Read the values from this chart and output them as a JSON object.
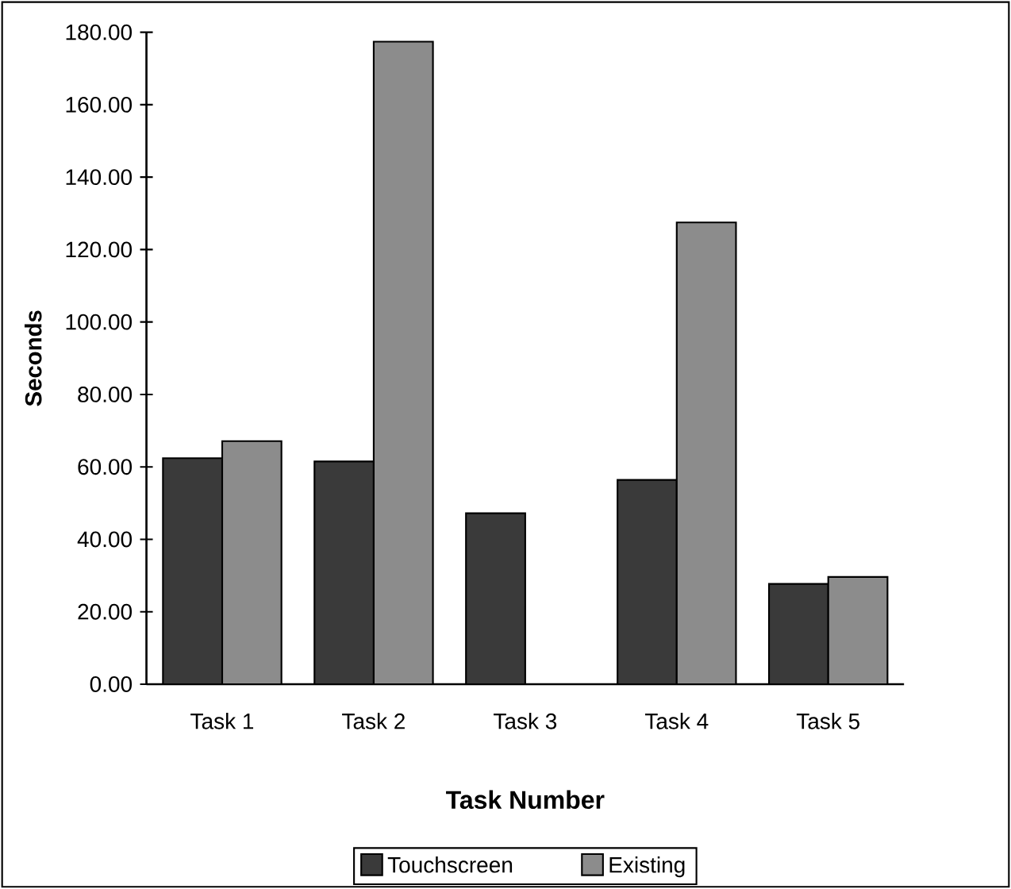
{
  "chart_data": {
    "type": "bar",
    "xlabel": "Task Number",
    "ylabel": "Seconds",
    "categories": [
      "Task 1",
      "Task 2",
      "Task 3",
      "Task 4",
      "Task 5"
    ],
    "series": [
      {
        "name": "Touchscreen",
        "color": "#3a3a3a",
        "values": [
          62.4,
          61.5,
          47.2,
          56.4,
          27.7
        ]
      },
      {
        "name": "Existing",
        "color": "#8c8c8c",
        "values": [
          67.1,
          177.4,
          null,
          127.5,
          29.6
        ]
      }
    ],
    "ylim": [
      0,
      180
    ],
    "yticks": [
      {
        "value": 0,
        "label": "0.00"
      },
      {
        "value": 20,
        "label": "20.00"
      },
      {
        "value": 40,
        "label": "40.00"
      },
      {
        "value": 60,
        "label": "60.00"
      },
      {
        "value": 80,
        "label": "80.00"
      },
      {
        "value": 100,
        "label": "100.00"
      },
      {
        "value": 120,
        "label": "120.00"
      },
      {
        "value": 140,
        "label": "140.00"
      },
      {
        "value": 160,
        "label": "160.00"
      },
      {
        "value": 180,
        "label": "180.00"
      }
    ],
    "grid": false,
    "legend": "bottom"
  }
}
